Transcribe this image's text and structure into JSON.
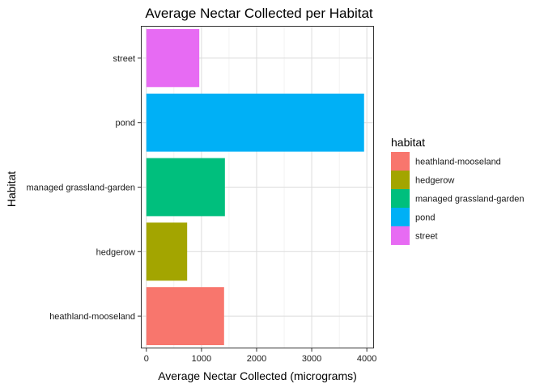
{
  "chart_data": {
    "type": "bar",
    "orientation": "horizontal",
    "title": "Average Nectar Collected per Habitat",
    "xlabel": "Average Nectar Collected (micrograms)",
    "ylabel": "Habitat",
    "categories": [
      "heathland-mooseland",
      "hedgerow",
      "managed grassland-garden",
      "pond",
      "street"
    ],
    "values": [
      1410,
      740,
      1425,
      3950,
      960
    ],
    "colors": [
      "#F8766D",
      "#A3A500",
      "#00BF7D",
      "#00B0F6",
      "#E76BF3"
    ],
    "xlim": [
      -100,
      4130
    ],
    "xticks": [
      0,
      1000,
      2000,
      3000,
      4000
    ],
    "grid": true,
    "legend": {
      "title": "habitat",
      "placement": "right",
      "entries": [
        "heathland-mooseland",
        "hedgerow",
        "managed grassland-garden",
        "pond",
        "street"
      ]
    }
  }
}
